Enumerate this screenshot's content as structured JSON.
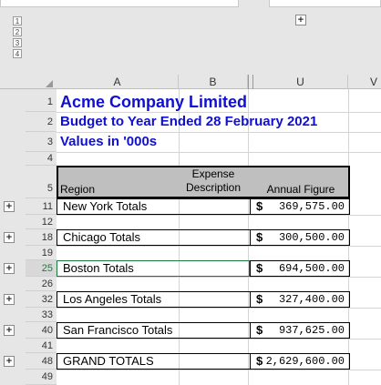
{
  "outline": {
    "col_levels": [
      "1",
      "2",
      "3",
      "4"
    ],
    "row_levels": [
      "1",
      "2"
    ],
    "expand_symbol": "+"
  },
  "columns": [
    "A",
    "B",
    "U",
    "V"
  ],
  "header_rows": [
    "1",
    "2",
    "3",
    "4",
    "5"
  ],
  "titles": {
    "company": "Acme Company Limited",
    "budget": "Budget to Year Ended 28 February 2021",
    "values": "Values in '000s"
  },
  "table_header": {
    "region": "Region",
    "expense_line1": "Expense",
    "expense_line2": "Description",
    "annual": "Annual Figure"
  },
  "rows": [
    {
      "num": "11",
      "label": "New York Totals",
      "currency": "$",
      "amount": "369,575.00"
    },
    {
      "num": "12"
    },
    {
      "num": "18",
      "label": "Chicago Totals",
      "currency": "$",
      "amount": "300,500.00"
    },
    {
      "num": "19"
    },
    {
      "num": "25",
      "label": "Boston Totals",
      "currency": "$",
      "amount": "694,500.00",
      "active": true
    },
    {
      "num": "26"
    },
    {
      "num": "32",
      "label": "Los Angeles Totals",
      "currency": "$",
      "amount": "327,400.00"
    },
    {
      "num": "33"
    },
    {
      "num": "40",
      "label": "San Francisco Totals",
      "currency": "$",
      "amount": "937,625.00"
    },
    {
      "num": "41"
    },
    {
      "num": "48",
      "label": "GRAND TOTALS",
      "currency": "$",
      "amount": "2,629,600.00"
    },
    {
      "num": "49"
    }
  ],
  "colors": {
    "title": "#1010d0",
    "header_fill": "#bfbfbf",
    "active_row": "#1e7a3c"
  }
}
